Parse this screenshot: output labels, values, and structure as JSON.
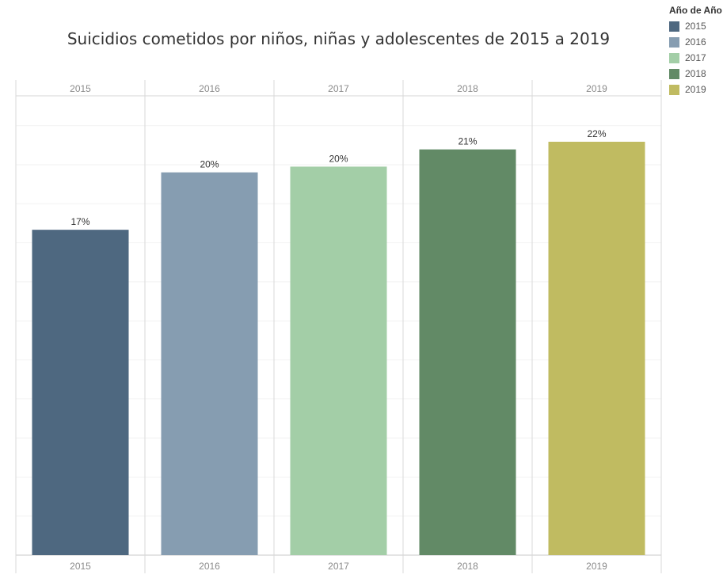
{
  "chart_data": {
    "type": "bar",
    "title": "Suicidios cometidos por niños, niñas y adolescentes de 2015 a 2019",
    "xlabel": "",
    "ylabel": "",
    "categories": [
      "2015",
      "2016",
      "2017",
      "2018",
      "2019"
    ],
    "values": [
      17.0,
      20.0,
      20.3,
      21.2,
      21.6
    ],
    "value_labels": [
      "17%",
      "20%",
      "20%",
      "21%",
      "22%"
    ],
    "colors": [
      "#4e6880",
      "#869db1",
      "#a3cea7",
      "#628a66",
      "#c0bb61"
    ],
    "ylim": [
      0,
      24
    ],
    "grid": true,
    "legend": {
      "title": "Año de Año",
      "placement": "top-right",
      "entries": [
        "2015",
        "2016",
        "2017",
        "2018",
        "2019"
      ]
    }
  }
}
